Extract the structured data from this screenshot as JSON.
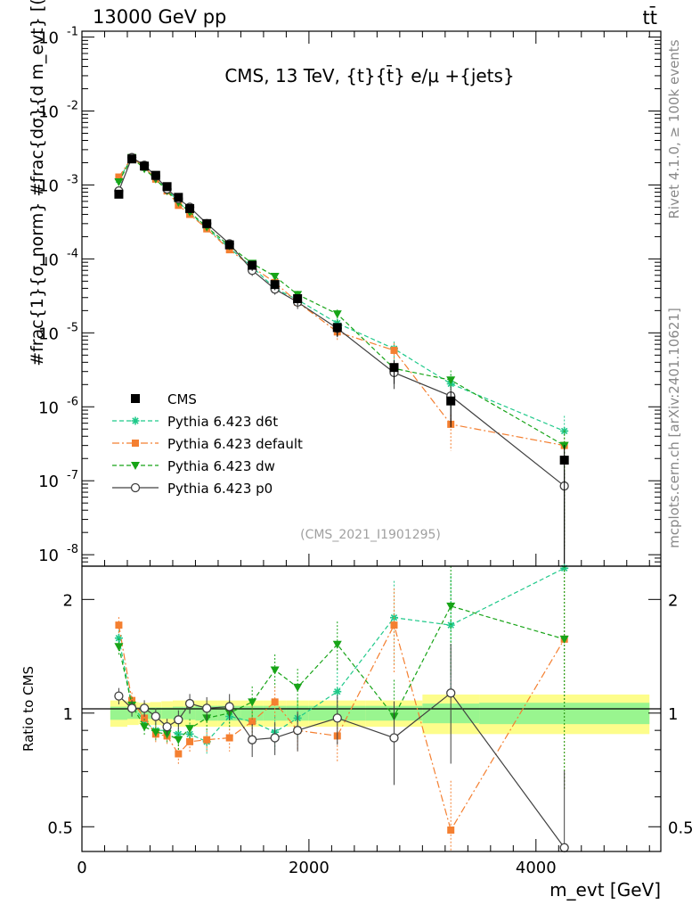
{
  "header": {
    "energy_label": "13000 GeV pp",
    "process_label": "tt̄",
    "main_title": "CMS, 13 TeV, {t}{t̄} e/μ +{jets}",
    "side_rivet": "Rivet 4.1.0, ≥ 100k events",
    "side_mcplots": "mcplots.cern.ch [arXiv:2401.10621]",
    "analysis_id": "(CMS_2021_I1901295)"
  },
  "colors": {
    "cms": "#000000",
    "d6t": "#1fc98a",
    "default": "#f47f30",
    "dw": "#17a417",
    "p0": "#404040",
    "band_inner": "#99f58f",
    "band_outer": "#fdfd8b"
  },
  "legend": [
    {
      "key": "cms",
      "label": "CMS"
    },
    {
      "key": "d6t",
      "label": "Pythia 6.423 d6t"
    },
    {
      "key": "default",
      "label": "Pythia 6.423 default"
    },
    {
      "key": "dw",
      "label": "Pythia 6.423 dw"
    },
    {
      "key": "p0",
      "label": "Pythia 6.423 p0"
    }
  ],
  "chart_data": [
    {
      "type": "scatter",
      "panel": "main",
      "ylabel": "#frac{1}{σ_norm} #frac{dσ}{d m_evt} [(GeV)^-1]",
      "yscale": "log",
      "ylim": [
        7e-09,
        0.12
      ],
      "xlim": [
        0,
        5100
      ],
      "y_ticks": [
        {
          "v": 1e-08,
          "label": "10^-8"
        },
        {
          "v": 1e-07,
          "label": "10^-7"
        },
        {
          "v": 1e-06,
          "label": "10^-6"
        },
        {
          "v": 1e-05,
          "label": "10^-5"
        },
        {
          "v": 0.0001,
          "label": "10^-4"
        },
        {
          "v": 0.001,
          "label": "10^-3"
        },
        {
          "v": 0.01,
          "label": "10^-2"
        },
        {
          "v": 0.1,
          "label": "10^-1"
        }
      ],
      "x": [
        325,
        440,
        550,
        650,
        750,
        850,
        950,
        1100,
        1300,
        1500,
        1700,
        1900,
        2250,
        2750,
        3250,
        4250
      ],
      "series": [
        {
          "name": "CMS",
          "key": "cms",
          "values": [
            0.00075,
            0.00225,
            0.0018,
            0.00135,
            0.00095,
            0.00068,
            0.00048,
            0.0003,
            0.000155,
            8.2e-05,
            4.5e-05,
            2.9e-05,
            1.18e-05,
            3.4e-06,
            1.2e-06,
            1.9e-07
          ]
        },
        {
          "name": "Pythia 6.423 d6t",
          "key": "d6t",
          "values": [
            0.00118,
            0.00235,
            0.0017,
            0.00125,
            0.00087,
            0.00059,
            0.00042,
            0.00026,
            0.00014,
            7.8e-05,
            4e-05,
            2.8e-05,
            1.35e-05,
            6.1e-06,
            2.05e-06,
            4.7e-07
          ]
        },
        {
          "name": "Pythia 6.423 default",
          "key": "default",
          "values": [
            0.00128,
            0.00235,
            0.00175,
            0.0012,
            0.00083,
            0.00053,
            0.0004,
            0.000255,
            0.000133,
            7.8e-05,
            4.8e-05,
            2.6e-05,
            1.03e-05,
            5.8e-06,
            5.8e-07,
            3e-07
          ]
        },
        {
          "name": "Pythia 6.423 dw",
          "key": "dw",
          "values": [
            0.0011,
            0.00235,
            0.00165,
            0.0012,
            0.00083,
            0.00058,
            0.00043,
            0.00027,
            0.00015,
            8.7e-05,
            5.8e-05,
            3.3e-05,
            1.8e-05,
            3.3e-06,
            2.3e-06,
            3e-07
          ]
        },
        {
          "name": "Pythia 6.423 p0",
          "key": "p0",
          "values": [
            0.00083,
            0.00235,
            0.00185,
            0.00132,
            0.00088,
            0.00065,
            0.0005,
            0.0003,
            0.00016,
            7e-05,
            3.9e-05,
            2.6e-05,
            1.15e-05,
            2.9e-06,
            1.4e-06,
            8.5e-08
          ]
        }
      ]
    },
    {
      "type": "scatter",
      "panel": "ratio",
      "xlabel": "m_evt [GeV]",
      "ylabel": "Ratio to CMS",
      "yscale": "log",
      "ylim": [
        0.43,
        2.45
      ],
      "xlim": [
        0,
        5100
      ],
      "x_ticks": [
        {
          "v": 0,
          "label": "0"
        },
        {
          "v": 2000,
          "label": "2000"
        },
        {
          "v": 4000,
          "label": "4000"
        }
      ],
      "y_ticks": [
        {
          "v": 0.5,
          "label": "0.5"
        },
        {
          "v": 1,
          "label": "1"
        },
        {
          "v": 2,
          "label": "2"
        }
      ],
      "x": [
        325,
        440,
        550,
        650,
        750,
        850,
        950,
        1100,
        1300,
        1500,
        1700,
        1900,
        2250,
        2750,
        3250,
        4250
      ],
      "bands": {
        "edges": [
          250,
          400,
          500,
          600,
          700,
          800,
          900,
          1000,
          1200,
          1400,
          1600,
          1800,
          2000,
          2500,
          3000,
          3500,
          5000
        ],
        "inner": [
          0.04,
          0.035,
          0.035,
          0.035,
          0.035,
          0.04,
          0.04,
          0.045,
          0.045,
          0.045,
          0.045,
          0.045,
          0.045,
          0.045,
          0.06,
          0.065
        ],
        "outer": [
          0.08,
          0.07,
          0.065,
          0.07,
          0.075,
          0.08,
          0.08,
          0.08,
          0.08,
          0.08,
          0.08,
          0.08,
          0.08,
          0.08,
          0.12,
          0.12
        ]
      },
      "series": [
        {
          "name": "Pythia 6.423 d6t",
          "key": "d6t",
          "values": [
            1.58,
            1.05,
            0.95,
            0.9,
            0.9,
            0.88,
            0.88,
            0.84,
            0.98,
            0.95,
            0.89,
            0.97,
            1.14,
            1.79,
            1.71,
            2.42
          ]
        },
        {
          "name": "Pythia 6.423 default",
          "key": "default",
          "values": [
            1.71,
            1.08,
            0.97,
            0.88,
            0.87,
            0.78,
            0.84,
            0.85,
            0.86,
            0.95,
            1.07,
            0.9,
            0.87,
            1.71,
            0.49,
            1.57
          ]
        },
        {
          "name": "Pythia 6.423 dw",
          "key": "dw",
          "values": [
            1.5,
            1.05,
            0.92,
            0.89,
            0.88,
            0.85,
            0.91,
            0.97,
            1.0,
            1.07,
            1.3,
            1.17,
            1.52,
            0.98,
            1.92,
            1.57
          ]
        },
        {
          "name": "Pythia 6.423 p0",
          "key": "p0",
          "values": [
            1.11,
            1.03,
            1.03,
            0.98,
            0.92,
            0.96,
            1.06,
            1.03,
            1.04,
            0.85,
            0.86,
            0.9,
            0.97,
            0.86,
            1.13,
            0.44
          ]
        }
      ]
    }
  ]
}
